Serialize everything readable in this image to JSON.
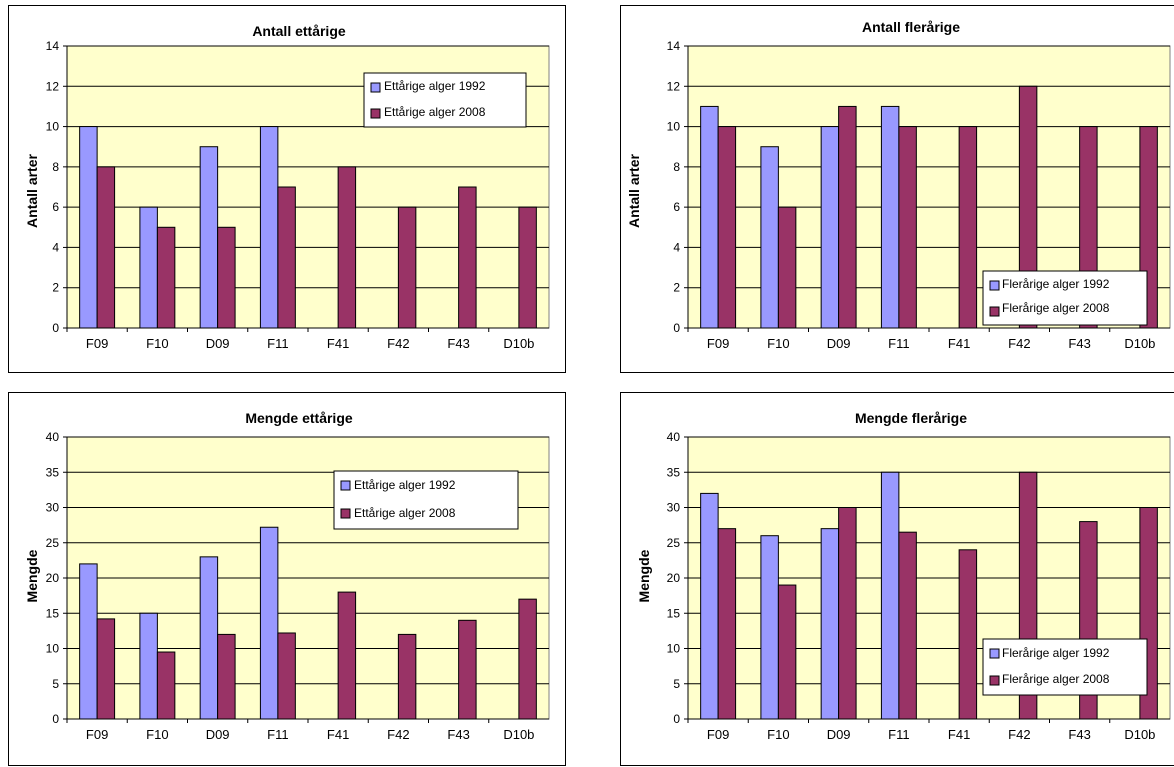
{
  "colors": {
    "plot_bg": "#ffffcc",
    "series_1992": "#9999ff",
    "series_2008": "#993366",
    "grid": "#000000"
  },
  "chart_data": [
    {
      "type": "bar",
      "title": "Antall ettårige",
      "ylabel": "Antall arter",
      "xlabel": "",
      "categories": [
        "F09",
        "F10",
        "D09",
        "F11",
        "F41",
        "F42",
        "F43",
        "D10b"
      ],
      "ylim": [
        0,
        14
      ],
      "yticks": [
        0,
        2,
        4,
        6,
        8,
        10,
        12,
        14
      ],
      "grid": true,
      "legend_position": "top-right",
      "series": [
        {
          "name": "Ettårige alger 1992",
          "values": [
            10,
            6,
            9,
            10,
            null,
            null,
            null,
            null
          ]
        },
        {
          "name": "Ettårige alger 2008",
          "values": [
            8,
            5,
            5,
            7,
            8,
            6,
            7,
            6
          ]
        }
      ]
    },
    {
      "type": "bar",
      "title": "Antall flerårige",
      "ylabel": "Antall arter",
      "xlabel": "",
      "categories": [
        "F09",
        "F10",
        "D09",
        "F11",
        "F41",
        "F42",
        "F43",
        "D10b"
      ],
      "ylim": [
        0,
        14
      ],
      "yticks": [
        0,
        2,
        4,
        6,
        8,
        10,
        12,
        14
      ],
      "grid": true,
      "legend_position": "bottom-right",
      "series": [
        {
          "name": "Flerårige alger 1992",
          "values": [
            11,
            9,
            10,
            11,
            null,
            null,
            null,
            null
          ]
        },
        {
          "name": "Flerårige alger 2008",
          "values": [
            10,
            6,
            11,
            10,
            10,
            12,
            10,
            10
          ]
        }
      ]
    },
    {
      "type": "bar",
      "title": "Mengde ettårige",
      "ylabel": "Mengde",
      "xlabel": "",
      "categories": [
        "F09",
        "F10",
        "D09",
        "F11",
        "F41",
        "F42",
        "F43",
        "D10b"
      ],
      "ylim": [
        0,
        40
      ],
      "yticks": [
        0,
        5,
        10,
        15,
        20,
        25,
        30,
        35,
        40
      ],
      "grid": true,
      "legend_position": "top-right",
      "series": [
        {
          "name": "Ettårige alger 1992",
          "values": [
            22,
            15,
            23,
            27.2,
            null,
            null,
            null,
            null
          ]
        },
        {
          "name": "Ettårige alger 2008",
          "values": [
            14.2,
            9.5,
            12,
            12.2,
            18,
            12,
            14,
            17
          ]
        }
      ]
    },
    {
      "type": "bar",
      "title": "Mengde flerårige",
      "ylabel": "Mengde",
      "xlabel": "",
      "categories": [
        "F09",
        "F10",
        "D09",
        "F11",
        "F41",
        "F42",
        "F43",
        "D10b"
      ],
      "ylim": [
        0,
        40
      ],
      "yticks": [
        0,
        5,
        10,
        15,
        20,
        25,
        30,
        35,
        40
      ],
      "grid": true,
      "legend_position": "bottom-right",
      "series": [
        {
          "name": "Flerårige alger 1992",
          "values": [
            32,
            26,
            27,
            35,
            null,
            null,
            null,
            null
          ]
        },
        {
          "name": "Flerårige alger 2008",
          "values": [
            27,
            19,
            30,
            26.5,
            24,
            35,
            28,
            30
          ]
        }
      ]
    }
  ]
}
